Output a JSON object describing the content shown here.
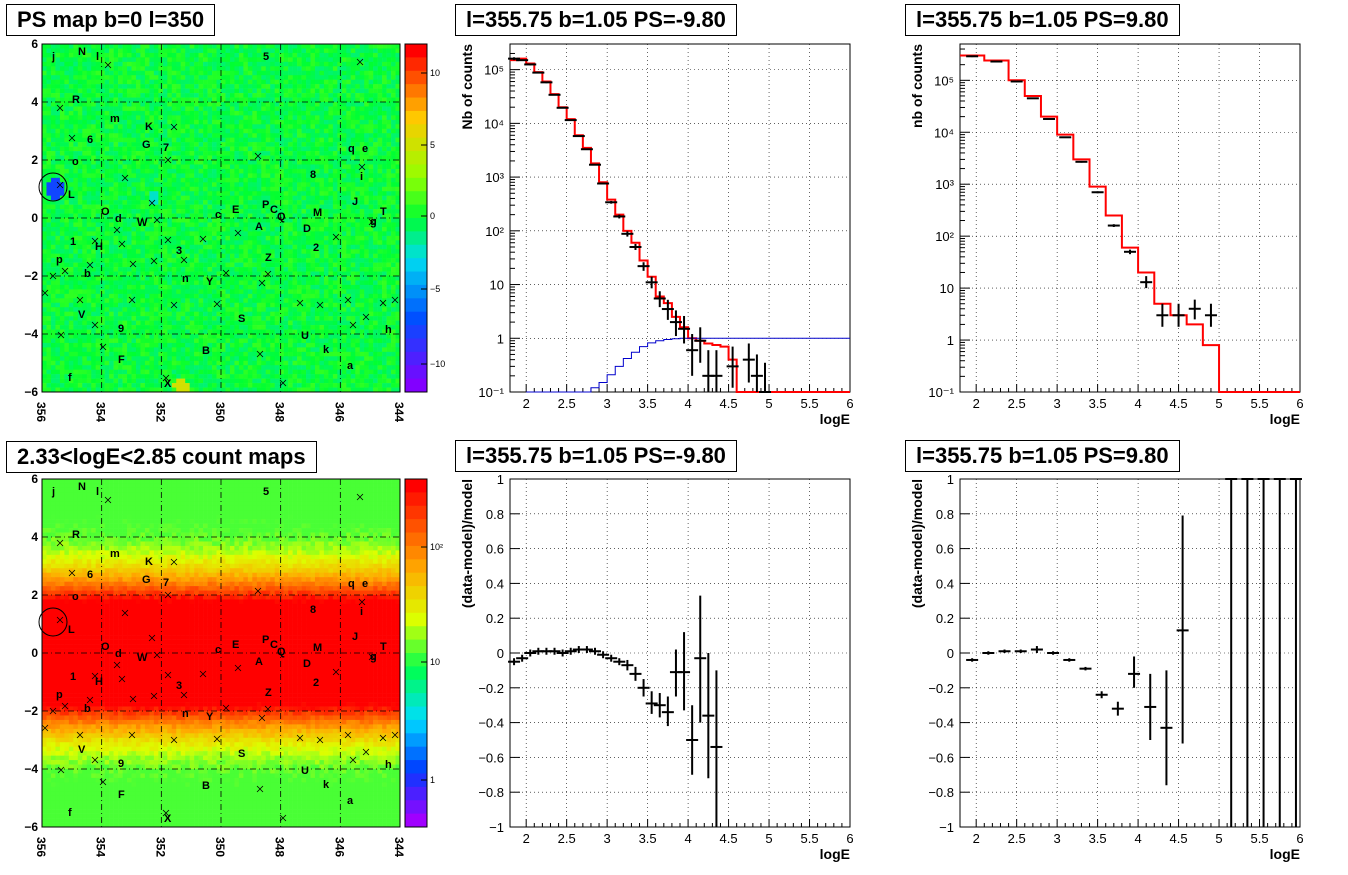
{
  "colors": {
    "model_line": "#ff0000",
    "ps_template": "#0000cc",
    "data_points": "#000000",
    "grid": "#000000"
  },
  "maps": [
    {
      "title": "PS map b=0 l=350",
      "palette": "residual",
      "colorbar_ticks": [
        "10",
        "5",
        "0",
        "−5",
        "−10"
      ],
      "x_ticks": [
        "356",
        "354",
        "352",
        "350",
        "348",
        "346",
        "344"
      ],
      "y_ticks": [
        "6",
        "4",
        "2",
        "0",
        "−2",
        "−4",
        "−6"
      ],
      "source_labels": [
        "j",
        "N",
        "l",
        "5",
        "R",
        "m",
        "K",
        "6",
        "G",
        "7",
        "q",
        "e",
        "o",
        "i",
        "8",
        "L",
        "J",
        "O",
        "P",
        "C",
        "E",
        "T",
        "Q",
        "M",
        "d",
        "c",
        "W",
        "g",
        "A",
        "D",
        "1",
        "H",
        "3",
        "2",
        "p",
        "Z",
        "b",
        "n",
        "Y",
        "S",
        "V",
        "9",
        "U",
        "h",
        "k",
        "F",
        "B",
        "a",
        "f",
        "X"
      ]
    },
    {
      "title": "2.33<logE<2.85 count maps",
      "palette": "counts",
      "colorbar_ticks": [
        "10²",
        "10",
        "1"
      ],
      "x_ticks": [
        "356",
        "354",
        "352",
        "350",
        "348",
        "346",
        "344"
      ],
      "y_ticks": [
        "6",
        "4",
        "2",
        "0",
        "−2",
        "−4",
        "−6"
      ],
      "source_labels": [
        "j",
        "N",
        "l",
        "5",
        "R",
        "m",
        "K",
        "6",
        "G",
        "7",
        "q",
        "e",
        "o",
        "i",
        "8",
        "L",
        "J",
        "O",
        "P",
        "C",
        "E",
        "T",
        "Q",
        "M",
        "d",
        "c",
        "W",
        "g",
        "A",
        "D",
        "1",
        "H",
        "3",
        "2",
        "p",
        "Z",
        "b",
        "n",
        "Y",
        "S",
        "V",
        "9",
        "U",
        "h",
        "k",
        "F",
        "B",
        "a",
        "f",
        "X"
      ]
    }
  ],
  "chart_data": [
    {
      "type": "line",
      "title": "l=355.75 b=1.05 PS=-9.80",
      "xlabel": "logE",
      "ylabel": "Nb of counts",
      "yscale": "log",
      "xlim": [
        1.8,
        6.0
      ],
      "ylim": [
        0.1,
        300000
      ],
      "x_ticks": [
        "2",
        "2.5",
        "3",
        "3.5",
        "4",
        "4.5",
        "5",
        "5.5",
        "6"
      ],
      "y_ticks": [
        "10⁻¹",
        "1",
        "10",
        "10²",
        "10³",
        "10⁴",
        "10⁵"
      ],
      "grid": true,
      "series": [
        {
          "role": "model",
          "step_edges": [
            1.8,
            1.9,
            2.0,
            2.1,
            2.2,
            2.3,
            2.4,
            2.5,
            2.6,
            2.7,
            2.8,
            2.9,
            3.0,
            3.1,
            3.2,
            3.3,
            3.4,
            3.5,
            3.6,
            3.7,
            3.8,
            3.9,
            4.0,
            4.1,
            4.2,
            4.3,
            4.4,
            4.5,
            4.6,
            4.7,
            4.8,
            4.9,
            5.0,
            5.1,
            5.2,
            5.3,
            5.4,
            5.5,
            5.6,
            5.7,
            5.8,
            5.9,
            6.0
          ],
          "values": [
            150000,
            160000,
            130000,
            90000,
            60000,
            35000,
            20000,
            12000,
            6000,
            3500,
            1800,
            800,
            380,
            200,
            100,
            60,
            28,
            14,
            6,
            4.5,
            2.5,
            1.6,
            1.0,
            0.9,
            0.8,
            0.75,
            0.7,
            0.4,
            0.1,
            0.1,
            0.1,
            0.1,
            0.1,
            0.1,
            0.1,
            0.1,
            0.1,
            0.1,
            0.1,
            0.1,
            0.1,
            0.1
          ]
        },
        {
          "role": "ps_template",
          "step_edges": [
            2.0,
            2.8,
            2.9,
            3.0,
            3.1,
            3.2,
            3.3,
            3.4,
            3.5,
            3.6,
            3.7,
            3.8,
            3.9,
            4.0,
            4.1,
            6.0
          ],
          "values": [
            0.1,
            0.12,
            0.15,
            0.21,
            0.3,
            0.42,
            0.55,
            0.7,
            0.82,
            0.9,
            0.95,
            0.98,
            1.0,
            1.0,
            1.0
          ]
        },
        {
          "role": "data",
          "points": [
            {
              "x": 1.85,
              "y": 160000,
              "lo": 150000,
              "hi": 170000
            },
            {
              "x": 1.95,
              "y": 150000,
              "lo": 145000,
              "hi": 155000
            },
            {
              "x": 2.05,
              "y": 125000,
              "lo": 120000,
              "hi": 130000
            },
            {
              "x": 2.15,
              "y": 88000,
              "lo": 85000,
              "hi": 91000
            },
            {
              "x": 2.25,
              "y": 58000,
              "lo": 56000,
              "hi": 60000
            },
            {
              "x": 2.35,
              "y": 34000,
              "lo": 33000,
              "hi": 35000
            },
            {
              "x": 2.45,
              "y": 19500,
              "lo": 19000,
              "hi": 20000
            },
            {
              "x": 2.55,
              "y": 11500,
              "lo": 11200,
              "hi": 11800
            },
            {
              "x": 2.65,
              "y": 5800,
              "lo": 5600,
              "hi": 6000
            },
            {
              "x": 2.75,
              "y": 3300,
              "lo": 3200,
              "hi": 3400
            },
            {
              "x": 2.85,
              "y": 1700,
              "lo": 1650,
              "hi": 1750
            },
            {
              "x": 2.95,
              "y": 760,
              "lo": 730,
              "hi": 790
            },
            {
              "x": 3.05,
              "y": 340,
              "lo": 320,
              "hi": 360
            },
            {
              "x": 3.15,
              "y": 185,
              "lo": 170,
              "hi": 200
            },
            {
              "x": 3.25,
              "y": 88,
              "lo": 78,
              "hi": 98
            },
            {
              "x": 3.35,
              "y": 50,
              "lo": 44,
              "hi": 57
            },
            {
              "x": 3.45,
              "y": 22,
              "lo": 18,
              "hi": 26
            },
            {
              "x": 3.55,
              "y": 11,
              "lo": 8.5,
              "hi": 14
            },
            {
              "x": 3.65,
              "y": 5.5,
              "lo": 3.8,
              "hi": 7.5
            },
            {
              "x": 3.75,
              "y": 3.5,
              "lo": 2.2,
              "hi": 5.2
            },
            {
              "x": 3.85,
              "y": 2.0,
              "lo": 1.1,
              "hi": 3.3
            },
            {
              "x": 3.95,
              "y": 1.5,
              "lo": 0.8,
              "hi": 2.6
            },
            {
              "x": 4.05,
              "y": 0.6,
              "lo": 0.2,
              "hi": 1.2
            },
            {
              "x": 4.15,
              "y": 0.9,
              "lo": 0.35,
              "hi": 1.6
            },
            {
              "x": 4.25,
              "y": 0.2,
              "lo": 0.1,
              "hi": 0.6
            },
            {
              "x": 4.35,
              "y": 0.2,
              "lo": 0.1,
              "hi": 0.6
            },
            {
              "x": 4.55,
              "y": 0.3,
              "lo": 0.12,
              "hi": 0.7
            },
            {
              "x": 4.75,
              "y": 0.4,
              "lo": 0.15,
              "hi": 0.8
            },
            {
              "x": 4.85,
              "y": 0.2,
              "lo": 0.1,
              "hi": 0.5
            },
            {
              "x": 4.95,
              "y": 0.1,
              "lo": 0.1,
              "hi": 0.35
            }
          ]
        }
      ]
    },
    {
      "type": "line",
      "title": "l=355.75 b=1.05 PS=9.80",
      "xlabel": "logE",
      "ylabel": "nb of counts",
      "yscale": "log",
      "xlim": [
        1.8,
        6.0
      ],
      "ylim": [
        0.1,
        500000
      ],
      "x_ticks": [
        "2",
        "2.5",
        "3",
        "3.5",
        "4",
        "4.5",
        "5",
        "5.5",
        "6"
      ],
      "y_ticks": [
        "10⁻¹",
        "1",
        "10",
        "10²",
        "10³",
        "10⁴",
        "10⁵"
      ],
      "grid": true,
      "series": [
        {
          "role": "model",
          "step_edges": [
            1.8,
            2.1,
            2.4,
            2.6,
            2.8,
            3.0,
            3.2,
            3.4,
            3.6,
            3.8,
            4.0,
            4.2,
            4.4,
            4.6,
            4.8,
            5.0,
            6.0
          ],
          "values": [
            300000,
            240000,
            100000,
            50000,
            20000,
            9000,
            3000,
            900,
            250,
            60,
            20,
            5,
            3,
            2,
            0.8,
            0.1
          ]
        },
        {
          "role": "data",
          "points": [
            {
              "x": 1.95,
              "y": 290000,
              "lo": 280000,
              "hi": 300000
            },
            {
              "x": 2.25,
              "y": 230000,
              "lo": 225000,
              "hi": 235000
            },
            {
              "x": 2.5,
              "y": 95000,
              "lo": 92000,
              "hi": 98000
            },
            {
              "x": 2.7,
              "y": 45000,
              "lo": 44000,
              "hi": 46000
            },
            {
              "x": 2.9,
              "y": 18000,
              "lo": 17500,
              "hi": 18500
            },
            {
              "x": 3.1,
              "y": 8000,
              "lo": 7800,
              "hi": 8200
            },
            {
              "x": 3.3,
              "y": 2700,
              "lo": 2600,
              "hi": 2800
            },
            {
              "x": 3.5,
              "y": 700,
              "lo": 670,
              "hi": 730
            },
            {
              "x": 3.7,
              "y": 160,
              "lo": 150,
              "hi": 170
            },
            {
              "x": 3.9,
              "y": 50,
              "lo": 45,
              "hi": 55
            },
            {
              "x": 4.1,
              "y": 13,
              "lo": 10,
              "hi": 17
            },
            {
              "x": 4.3,
              "y": 3,
              "lo": 1.8,
              "hi": 5
            },
            {
              "x": 4.5,
              "y": 3,
              "lo": 1.8,
              "hi": 5
            },
            {
              "x": 4.7,
              "y": 4,
              "lo": 2.5,
              "hi": 6
            },
            {
              "x": 4.9,
              "y": 3,
              "lo": 1.8,
              "hi": 5
            }
          ]
        }
      ]
    },
    {
      "type": "scatter",
      "title": "l=355.75 b=1.05 PS=-9.80",
      "xlabel": "logE",
      "ylabel": "(data-model)/model",
      "xlim": [
        1.8,
        6.0
      ],
      "ylim": [
        -1.0,
        1.0
      ],
      "x_ticks": [
        "2",
        "2.5",
        "3",
        "3.5",
        "4",
        "4.5",
        "5",
        "5.5",
        "6"
      ],
      "y_ticks": [
        "1",
        "0.8",
        "0.6",
        "0.4",
        "0.2",
        "0",
        "−0.2",
        "−0.4",
        "−0.6",
        "−0.8",
        "−1"
      ],
      "grid": true,
      "series": [
        {
          "role": "data",
          "points": [
            {
              "x": 1.85,
              "y": -0.05,
              "lo": -0.07,
              "hi": -0.03
            },
            {
              "x": 1.95,
              "y": -0.03,
              "lo": -0.05,
              "hi": -0.01
            },
            {
              "x": 2.05,
              "y": 0.0,
              "lo": -0.02,
              "hi": 0.02
            },
            {
              "x": 2.15,
              "y": 0.01,
              "lo": -0.01,
              "hi": 0.03
            },
            {
              "x": 2.25,
              "y": 0.01,
              "lo": -0.01,
              "hi": 0.03
            },
            {
              "x": 2.35,
              "y": 0.01,
              "lo": -0.01,
              "hi": 0.03
            },
            {
              "x": 2.45,
              "y": 0.0,
              "lo": -0.02,
              "hi": 0.02
            },
            {
              "x": 2.55,
              "y": 0.01,
              "lo": -0.01,
              "hi": 0.03
            },
            {
              "x": 2.65,
              "y": 0.02,
              "lo": 0.0,
              "hi": 0.04
            },
            {
              "x": 2.75,
              "y": 0.02,
              "lo": 0.0,
              "hi": 0.04
            },
            {
              "x": 2.85,
              "y": 0.01,
              "lo": -0.01,
              "hi": 0.03
            },
            {
              "x": 2.95,
              "y": -0.01,
              "lo": -0.03,
              "hi": 0.01
            },
            {
              "x": 3.05,
              "y": -0.03,
              "lo": -0.05,
              "hi": -0.01
            },
            {
              "x": 3.15,
              "y": -0.05,
              "lo": -0.07,
              "hi": -0.03
            },
            {
              "x": 3.25,
              "y": -0.07,
              "lo": -0.1,
              "hi": -0.04
            },
            {
              "x": 3.35,
              "y": -0.12,
              "lo": -0.16,
              "hi": -0.08
            },
            {
              "x": 3.45,
              "y": -0.2,
              "lo": -0.25,
              "hi": -0.15
            },
            {
              "x": 3.55,
              "y": -0.29,
              "lo": -0.35,
              "hi": -0.22
            },
            {
              "x": 3.65,
              "y": -0.3,
              "lo": -0.37,
              "hi": -0.23
            },
            {
              "x": 3.75,
              "y": -0.34,
              "lo": -0.42,
              "hi": -0.25
            },
            {
              "x": 3.85,
              "y": -0.11,
              "lo": -0.25,
              "hi": 0.02
            },
            {
              "x": 3.95,
              "y": -0.11,
              "lo": -0.33,
              "hi": 0.12
            },
            {
              "x": 4.05,
              "y": -0.5,
              "lo": -0.7,
              "hi": -0.3
            },
            {
              "x": 4.15,
              "y": -0.03,
              "lo": -0.4,
              "hi": 0.33
            },
            {
              "x": 4.25,
              "y": -0.36,
              "lo": -0.72,
              "hi": 0.0
            },
            {
              "x": 4.35,
              "y": -0.54,
              "lo": -1.0,
              "hi": -0.1
            }
          ]
        }
      ]
    },
    {
      "type": "scatter",
      "title": "l=355.75 b=1.05 PS=9.80",
      "xlabel": "logE",
      "ylabel": "(data-model)/model",
      "xlim": [
        1.8,
        6.0
      ],
      "ylim": [
        -1.0,
        1.0
      ],
      "x_ticks": [
        "2",
        "2.5",
        "3",
        "3.5",
        "4",
        "4.5",
        "5",
        "5.5",
        "6"
      ],
      "y_ticks": [
        "1",
        "0.8",
        "0.6",
        "0.4",
        "0.2",
        "0",
        "−0.2",
        "−0.4",
        "−0.6",
        "−0.8",
        "−1"
      ],
      "grid": true,
      "series": [
        {
          "role": "data",
          "points": [
            {
              "x": 1.95,
              "y": -0.04,
              "lo": -0.05,
              "hi": -0.03
            },
            {
              "x": 2.15,
              "y": 0.0,
              "lo": -0.01,
              "hi": 0.01
            },
            {
              "x": 2.35,
              "y": 0.01,
              "lo": 0.0,
              "hi": 0.02
            },
            {
              "x": 2.55,
              "y": 0.01,
              "lo": 0.0,
              "hi": 0.02
            },
            {
              "x": 2.75,
              "y": 0.02,
              "lo": 0.0,
              "hi": 0.04
            },
            {
              "x": 2.95,
              "y": 0.0,
              "lo": -0.01,
              "hi": 0.01
            },
            {
              "x": 3.15,
              "y": -0.04,
              "lo": -0.05,
              "hi": -0.03
            },
            {
              "x": 3.35,
              "y": -0.09,
              "lo": -0.1,
              "hi": -0.08
            },
            {
              "x": 3.55,
              "y": -0.24,
              "lo": -0.26,
              "hi": -0.22
            },
            {
              "x": 3.75,
              "y": -0.32,
              "lo": -0.36,
              "hi": -0.28
            },
            {
              "x": 3.95,
              "y": -0.12,
              "lo": -0.2,
              "hi": -0.02
            },
            {
              "x": 4.15,
              "y": -0.31,
              "lo": -0.5,
              "hi": -0.12
            },
            {
              "x": 4.35,
              "y": -0.43,
              "lo": -0.76,
              "hi": -0.1
            },
            {
              "x": 4.55,
              "y": 0.13,
              "lo": -0.52,
              "hi": 0.79
            },
            {
              "x": 5.15,
              "y": 1.0,
              "lo": -1.0,
              "hi": 1.0
            },
            {
              "x": 5.35,
              "y": 1.0,
              "lo": -1.0,
              "hi": 1.0
            },
            {
              "x": 5.55,
              "y": 1.0,
              "lo": -1.0,
              "hi": 1.0
            },
            {
              "x": 5.75,
              "y": 1.0,
              "lo": -1.0,
              "hi": 1.0
            },
            {
              "x": 5.95,
              "y": 1.0,
              "lo": -1.0,
              "hi": 1.0
            }
          ]
        }
      ]
    }
  ]
}
